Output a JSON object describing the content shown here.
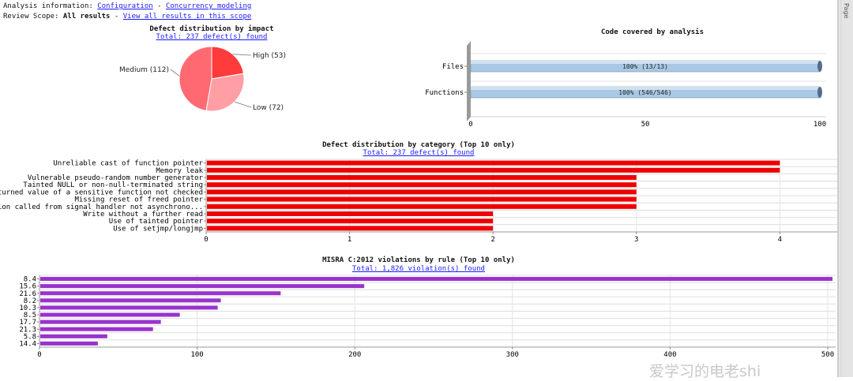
{
  "header": {
    "analysis_label": "Analysis information:",
    "config_link": "Configuration",
    "separator": " - ",
    "concurrency_link": "Concurrency modeling",
    "scope_label": "Review Scope:",
    "scope_value": "All results",
    "scope_dash": " - ",
    "view_all_link": "View all results in this scope"
  },
  "side_tab": {
    "label": "Page"
  },
  "watermark": {
    "text": "爱学习的电老shi"
  },
  "colors": {
    "high": "#ff3b3b",
    "medium": "#ff6a72",
    "low": "#ff9fa5",
    "category_bar": "#ee0000",
    "misra_bar": "#9933cc",
    "coverage_bar": "#a8c8e4",
    "coverage_end": "#556b8c"
  },
  "chart_data": [
    {
      "id": "impact",
      "type": "pie",
      "title": "Defect distribution by impact",
      "link": "Total: 237 defect(s) found",
      "slices": [
        {
          "label": "High (53)",
          "value": 53
        },
        {
          "label": "Low (72)",
          "value": 72
        },
        {
          "label": "Medium (112)",
          "value": 112
        }
      ]
    },
    {
      "id": "coverage",
      "type": "bar",
      "orientation": "horizontal",
      "title": "Code covered by analysis",
      "categories": [
        "Files",
        "Functions"
      ],
      "values": [
        100,
        100
      ],
      "bar_labels": [
        "100% (13/13)",
        "100% (546/546)"
      ],
      "xlim": [
        0,
        100
      ],
      "xticks": [
        0,
        50,
        100
      ]
    },
    {
      "id": "category",
      "type": "bar",
      "orientation": "horizontal",
      "title": "Defect distribution by category (Top 10 only)",
      "link": "Total: 237 defect(s) found",
      "categories": [
        "Unreliable cast of function pointer",
        "Memory leak",
        "Vulnerable pseudo-random number generator",
        "Tainted NULL or non-null-terminated string",
        "Returned value of a sensitive function not checked",
        "Missing reset of freed pointer",
        "Function called from signal handler not asynchrono...",
        "Write without a further read",
        "Use of tainted pointer",
        "Use of setjmp/longjmp"
      ],
      "values": [
        4,
        4,
        3,
        3,
        3,
        3,
        3,
        2,
        2,
        2
      ],
      "xlim": [
        0,
        4.4
      ],
      "xticks": [
        0,
        1,
        2,
        3,
        4
      ]
    },
    {
      "id": "misra",
      "type": "bar",
      "orientation": "horizontal",
      "title": "MISRA C:2012 violations by rule (Top 10 only)",
      "link": "Total: 1,826 violation(s) found",
      "categories": [
        "8.4",
        "15.6",
        "21.6",
        "8.2",
        "10.3",
        "8.5",
        "17.7",
        "21.3",
        "5.8",
        "14.4"
      ],
      "values": [
        503,
        206,
        153,
        115,
        113,
        89,
        77,
        72,
        43,
        37
      ],
      "xlim": [
        0,
        505
      ],
      "xticks": [
        0,
        100,
        200,
        300,
        400,
        500
      ]
    }
  ]
}
